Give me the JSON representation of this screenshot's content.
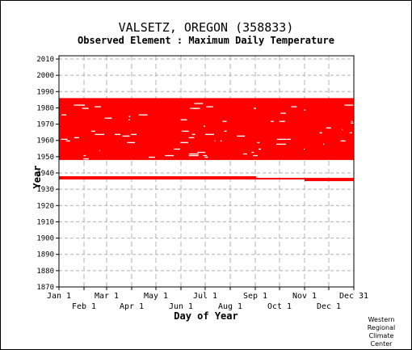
{
  "chart_data": {
    "type": "scatter",
    "title": "VALSETZ, OREGON   (358833)",
    "subtitle": "Observed Element : Maximum Daily Temperature",
    "xlabel": "Day of Year",
    "ylabel": "Year",
    "xlim": [
      1,
      366
    ],
    "ylim": [
      1870,
      2012
    ],
    "y_ticks": [
      1870,
      1880,
      1890,
      1900,
      1910,
      1920,
      1930,
      1940,
      1950,
      1960,
      1970,
      1980,
      1990,
      2000,
      2010
    ],
    "x_ticks_top_row": [
      {
        "label": "Jan 1",
        "day": 1
      },
      {
        "label": "Mar 1",
        "day": 60
      },
      {
        "label": "May 1",
        "day": 121
      },
      {
        "label": "Jul 1",
        "day": 182
      },
      {
        "label": "Sep 1",
        "day": 244
      },
      {
        "label": "Nov 1",
        "day": 305
      },
      {
        "label": "Dec 31",
        "day": 366
      }
    ],
    "x_ticks_bottom_row": [
      {
        "label": "Feb 1",
        "day": 32
      },
      {
        "label": "Apr 1",
        "day": 91
      },
      {
        "label": "Jun 1",
        "day": 152
      },
      {
        "label": "Aug 1",
        "day": 213
      },
      {
        "label": "Oct 1",
        "day": 274
      },
      {
        "label": "Dec 1",
        "day": 335
      }
    ],
    "grid": true,
    "series_color": "#ff0000",
    "data_blocks": [
      {
        "day_start": 1,
        "day_end": 366,
        "year_start": 1948,
        "year_end": 1986,
        "description": "near-continuous daily observations"
      },
      {
        "day_start": 1,
        "day_end": 245,
        "year_start": 1936,
        "year_end": 1938
      },
      {
        "day_start": 245,
        "day_end": 305,
        "year_start": 1936,
        "year_end": 1937
      },
      {
        "day_start": 305,
        "day_end": 366,
        "year_start": 1935,
        "year_end": 1937
      }
    ]
  },
  "credit": [
    "Western",
    "Regional",
    "Climate",
    "Center"
  ]
}
